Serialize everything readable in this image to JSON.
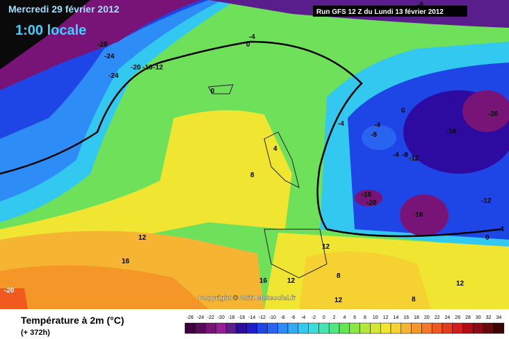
{
  "header": {
    "title": "Mercredi 29 février 2012",
    "time": "1:00 locale",
    "run": "Run GFS 12 Z du Lundi 13 février 2012"
  },
  "map": {
    "copyright": "Copyright © 2011 Meteociel.fr",
    "contour_labels": [
      "-28",
      "-24",
      "-24",
      "-20",
      "-16",
      "-12",
      "-8",
      "-4",
      "0",
      "0",
      "0",
      "-4",
      "-4",
      "-8",
      "-4",
      "-8",
      "-12",
      "-20",
      "-16",
      "4",
      "8",
      "-16",
      "-20",
      "-16",
      "-12",
      "4",
      "0",
      "12",
      "16",
      "12",
      "16",
      "12",
      "8",
      "12",
      "12",
      "8",
      "-20"
    ]
  },
  "legend": {
    "title": "Température à 2m (°C)",
    "lead": "(+ 372h)",
    "ticks": [
      -26,
      -24,
      -22,
      -20,
      -18,
      -16,
      -14,
      -12,
      -10,
      -8,
      -6,
      -4,
      -2,
      0,
      2,
      4,
      6,
      8,
      10,
      12,
      14,
      16,
      18,
      20,
      22,
      24,
      26,
      28,
      30,
      32,
      34
    ],
    "colors": [
      "#3c003c",
      "#5a0a5a",
      "#781478",
      "#961e96",
      "#5a1e8c",
      "#2d0aa0",
      "#1e1ec8",
      "#1e46e6",
      "#2864f0",
      "#2d8cf5",
      "#32aaf5",
      "#32c8f0",
      "#3cdcdc",
      "#46e6b4",
      "#50e682",
      "#64e650",
      "#8ce646",
      "#b4e63c",
      "#d2e632",
      "#f0e632",
      "#f5d232",
      "#f5b432",
      "#f59628",
      "#f57828",
      "#f05a1e",
      "#e63c1e",
      "#d21e1e",
      "#b40a14",
      "#8c0a14",
      "#640a0a",
      "#3c0505"
    ]
  }
}
